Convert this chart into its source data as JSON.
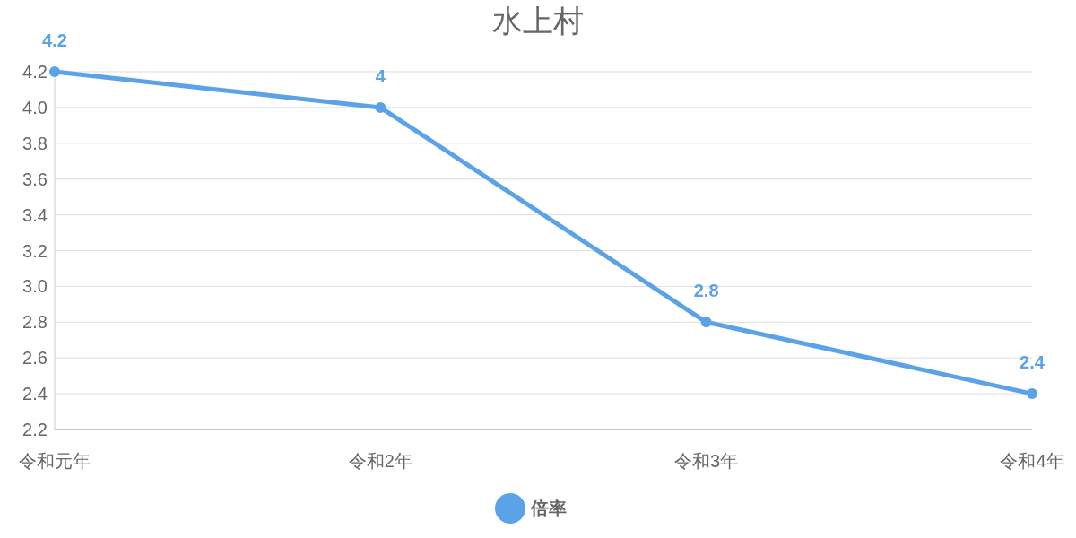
{
  "chart_data": {
    "type": "line",
    "title": "水上村",
    "categories": [
      "令和元年",
      "令和2年",
      "令和3年",
      "令和4年"
    ],
    "series": [
      {
        "name": "倍率",
        "color": "#5ba3e6",
        "values": [
          4.2,
          4,
          2.8,
          2.4
        ]
      }
    ],
    "ylim": [
      2.2,
      4.2
    ],
    "yticks": [
      2.2,
      2.4,
      2.6,
      2.8,
      {
        "value": 3,
        "label": "3.0"
      },
      3.2,
      3.4,
      3.6,
      3.8,
      {
        "value": 4,
        "label": "4.0"
      },
      4.2
    ],
    "grid": "y",
    "legend": "bottom",
    "marker": "circle",
    "line_style": "solid",
    "data_labels": true
  }
}
